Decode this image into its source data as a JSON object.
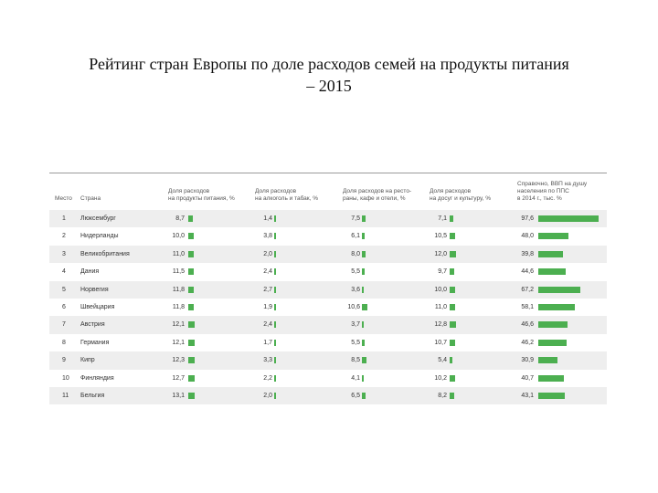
{
  "title_line1": "Рейтинг стран Европы по доле расходов семей на продукты питания",
  "title_line2": "– 2015",
  "headers": [
    "Место",
    "Страна",
    "Доля расходов\nна продукты питания, %",
    "Доля расходов\nна алкоголь и табак, %",
    "Доля расходов на рестo-\nраны, кафе и отели, %",
    "Доля расходов\nна досуг и культуру, %",
    "Справочно, ВВП на душу\nнаселения по ППС\nв 2014 г., тыс. %"
  ],
  "rows": [
    {
      "rank": "1",
      "country": "Люксембург",
      "food": "8,7",
      "alc": "1,4",
      "rest": "7,5",
      "leisure": "7,1",
      "gdp": "97,6"
    },
    {
      "rank": "2",
      "country": "Нидерланды",
      "food": "10,0",
      "alc": "3,8",
      "rest": "6,1",
      "leisure": "10,5",
      "gdp": "48,0"
    },
    {
      "rank": "3",
      "country": "Великобритания",
      "food": "11,0",
      "alc": "2,0",
      "rest": "8,0",
      "leisure": "12,0",
      "gdp": "39,8"
    },
    {
      "rank": "4",
      "country": "Дания",
      "food": "11,5",
      "alc": "2,4",
      "rest": "5,5",
      "leisure": "9,7",
      "gdp": "44,6"
    },
    {
      "rank": "5",
      "country": "Норвегия",
      "food": "11,8",
      "alc": "2,7",
      "rest": "3,6",
      "leisure": "10,0",
      "gdp": "67,2"
    },
    {
      "rank": "6",
      "country": "Швейцария",
      "food": "11,8",
      "alc": "1,9",
      "rest": "10,6",
      "leisure": "11,0",
      "gdp": "58,1"
    },
    {
      "rank": "7",
      "country": "Австрия",
      "food": "12,1",
      "alc": "2,4",
      "rest": "3,7",
      "leisure": "12,8",
      "gdp": "46,6"
    },
    {
      "rank": "8",
      "country": "Германия",
      "food": "12,1",
      "alc": "1,7",
      "rest": "5,5",
      "leisure": "10,7",
      "gdp": "46,2"
    },
    {
      "rank": "9",
      "country": "Кипр",
      "food": "12,3",
      "alc": "3,3",
      "rest": "8,5",
      "leisure": "5,4",
      "gdp": "30,9"
    },
    {
      "rank": "10",
      "country": "Финляндия",
      "food": "12,7",
      "alc": "2,2",
      "rest": "4,1",
      "leisure": "10,2",
      "gdp": "40,7"
    },
    {
      "rank": "11",
      "country": "Бельгия",
      "food": "13,1",
      "alc": "2,0",
      "rest": "6,5",
      "leisure": "8,2",
      "gdp": "43,1"
    }
  ],
  "colors": {
    "bar": "#4caf50",
    "stripe": "#eeeeee"
  }
}
